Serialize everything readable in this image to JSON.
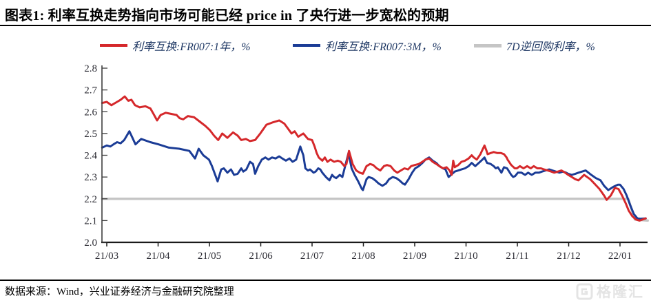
{
  "header": {
    "title": "图表1:  利率互换走势指向市场可能已经 price in 了央行进一步宽松的预期"
  },
  "footer": {
    "source": "数据来源：Wind，兴业证券经济与金融研究院整理",
    "watermark": "格隆汇"
  },
  "colors": {
    "swap_1y": "#d5282b",
    "swap_3m": "#1b3c96",
    "repo_7d": "#c5c5c5",
    "legend_text": "#1f3864",
    "axis_line": "#3d3d3d",
    "tick_text": "#2b2b33"
  },
  "chart_data": {
    "type": "line",
    "title": "",
    "xlabel": "",
    "ylabel": "",
    "grid": false,
    "legend_position": "top",
    "x_axis": {
      "unit": "months since 2021-03",
      "tick_labels": [
        "21/03",
        "21/04",
        "21/05",
        "21/06",
        "21/07",
        "21/08",
        "21/09",
        "21/10",
        "21/11",
        "21/12",
        "22/01"
      ]
    },
    "y_axis": {
      "min": 2.0,
      "max": 2.8,
      "tick_step": 0.1,
      "tick_labels": [
        "2.0",
        "2.1",
        "2.2",
        "2.3",
        "2.4",
        "2.5",
        "2.6",
        "2.7",
        "2.8"
      ]
    },
    "series": [
      {
        "name": "利率互换:FR007:1年，%",
        "color_key": "swap_1y",
        "points": [
          [
            -0.09,
            2.64
          ],
          [
            0,
            2.645
          ],
          [
            0.09,
            2.63
          ],
          [
            0.2,
            2.645
          ],
          [
            0.27,
            2.655
          ],
          [
            0.35,
            2.67
          ],
          [
            0.42,
            2.65
          ],
          [
            0.48,
            2.655
          ],
          [
            0.55,
            2.63
          ],
          [
            0.64,
            2.62
          ],
          [
            0.75,
            2.625
          ],
          [
            0.85,
            2.615
          ],
          [
            0.91,
            2.59
          ],
          [
            0.98,
            2.56
          ],
          [
            1.05,
            2.585
          ],
          [
            1.15,
            2.595
          ],
          [
            1.25,
            2.59
          ],
          [
            1.36,
            2.585
          ],
          [
            1.42,
            2.57
          ],
          [
            1.49,
            2.565
          ],
          [
            1.58,
            2.58
          ],
          [
            1.7,
            2.575
          ],
          [
            1.81,
            2.555
          ],
          [
            1.92,
            2.535
          ],
          [
            2.01,
            2.515
          ],
          [
            2.09,
            2.49
          ],
          [
            2.17,
            2.47
          ],
          [
            2.25,
            2.5
          ],
          [
            2.35,
            2.48
          ],
          [
            2.46,
            2.505
          ],
          [
            2.55,
            2.49
          ],
          [
            2.62,
            2.47
          ],
          [
            2.71,
            2.475
          ],
          [
            2.79,
            2.465
          ],
          [
            2.89,
            2.47
          ],
          [
            2.99,
            2.5
          ],
          [
            3.11,
            2.54
          ],
          [
            3.22,
            2.55
          ],
          [
            3.36,
            2.56
          ],
          [
            3.46,
            2.545
          ],
          [
            3.6,
            2.5
          ],
          [
            3.66,
            2.51
          ],
          [
            3.73,
            2.485
          ],
          [
            3.83,
            2.5
          ],
          [
            3.92,
            2.475
          ],
          [
            4,
            2.47
          ],
          [
            4.05,
            2.44
          ],
          [
            4.09,
            2.41
          ],
          [
            4.13,
            2.39
          ],
          [
            4.2,
            2.375
          ],
          [
            4.25,
            2.39
          ],
          [
            4.3,
            2.37
          ],
          [
            4.36,
            2.38
          ],
          [
            4.43,
            2.37
          ],
          [
            4.5,
            2.375
          ],
          [
            4.56,
            2.37
          ],
          [
            4.63,
            2.35
          ],
          [
            4.67,
            2.36
          ],
          [
            4.72,
            2.42
          ],
          [
            4.79,
            2.36
          ],
          [
            4.86,
            2.33
          ],
          [
            4.93,
            2.32
          ],
          [
            4.99,
            2.315
          ],
          [
            5.06,
            2.35
          ],
          [
            5.13,
            2.36
          ],
          [
            5.19,
            2.355
          ],
          [
            5.26,
            2.34
          ],
          [
            5.33,
            2.33
          ],
          [
            5.4,
            2.35
          ],
          [
            5.46,
            2.355
          ],
          [
            5.53,
            2.35
          ],
          [
            5.6,
            2.33
          ],
          [
            5.66,
            2.32
          ],
          [
            5.73,
            2.33
          ],
          [
            5.8,
            2.34
          ],
          [
            5.87,
            2.335
          ],
          [
            5.93,
            2.35
          ],
          [
            6,
            2.355
          ],
          [
            6.08,
            2.36
          ],
          [
            6.15,
            2.37
          ],
          [
            6.21,
            2.38
          ],
          [
            6.28,
            2.385
          ],
          [
            6.35,
            2.37
          ],
          [
            6.42,
            2.36
          ],
          [
            6.48,
            2.35
          ],
          [
            6.55,
            2.34
          ],
          [
            6.62,
            2.345
          ],
          [
            6.68,
            2.33
          ],
          [
            6.72,
            2.31
          ],
          [
            6.75,
            2.375
          ],
          [
            6.78,
            2.345
          ],
          [
            6.85,
            2.355
          ],
          [
            6.91,
            2.37
          ],
          [
            6.98,
            2.375
          ],
          [
            7.05,
            2.385
          ],
          [
            7.11,
            2.4
          ],
          [
            7.15,
            2.39
          ],
          [
            7.21,
            2.38
          ],
          [
            7.28,
            2.405
          ],
          [
            7.32,
            2.425
          ],
          [
            7.36,
            2.445
          ],
          [
            7.4,
            2.42
          ],
          [
            7.42,
            2.405
          ],
          [
            7.48,
            2.41
          ],
          [
            7.54,
            2.415
          ],
          [
            7.61,
            2.41
          ],
          [
            7.68,
            2.41
          ],
          [
            7.74,
            2.405
          ],
          [
            7.79,
            2.39
          ],
          [
            7.81,
            2.38
          ],
          [
            7.88,
            2.355
          ],
          [
            7.95,
            2.34
          ],
          [
            7.99,
            2.34
          ],
          [
            8.05,
            2.35
          ],
          [
            8.12,
            2.34
          ],
          [
            8.19,
            2.35
          ],
          [
            8.26,
            2.34
          ],
          [
            8.32,
            2.35
          ],
          [
            8.39,
            2.34
          ],
          [
            8.46,
            2.34
          ],
          [
            8.52,
            2.335
          ],
          [
            8.59,
            2.33
          ],
          [
            8.66,
            2.325
          ],
          [
            8.72,
            2.32
          ],
          [
            8.79,
            2.325
          ],
          [
            8.86,
            2.33
          ],
          [
            8.93,
            2.32
          ],
          [
            8.99,
            2.31
          ],
          [
            9.06,
            2.3
          ],
          [
            9.13,
            2.29
          ],
          [
            9.19,
            2.285
          ],
          [
            9.3,
            2.31
          ],
          [
            9.42,
            2.29
          ],
          [
            9.5,
            2.27
          ],
          [
            9.6,
            2.245
          ],
          [
            9.69,
            2.215
          ],
          [
            9.74,
            2.195
          ],
          [
            9.82,
            2.215
          ],
          [
            9.9,
            2.25
          ],
          [
            9.97,
            2.245
          ],
          [
            10.04,
            2.215
          ],
          [
            10.11,
            2.18
          ],
          [
            10.17,
            2.145
          ],
          [
            10.24,
            2.12
          ],
          [
            10.31,
            2.105
          ],
          [
            10.38,
            2.1
          ],
          [
            10.44,
            2.105
          ],
          [
            10.5,
            2.11
          ]
        ]
      },
      {
        "name": "利率互换:FR007:3M，%",
        "color_key": "swap_3m",
        "points": [
          [
            -0.09,
            2.435
          ],
          [
            0,
            2.445
          ],
          [
            0.07,
            2.44
          ],
          [
            0.13,
            2.45
          ],
          [
            0.2,
            2.46
          ],
          [
            0.27,
            2.455
          ],
          [
            0.34,
            2.47
          ],
          [
            0.44,
            2.51
          ],
          [
            0.5,
            2.48
          ],
          [
            0.56,
            2.45
          ],
          [
            0.67,
            2.475
          ],
          [
            0.85,
            2.46
          ],
          [
            1.01,
            2.45
          ],
          [
            1.21,
            2.435
          ],
          [
            1.41,
            2.43
          ],
          [
            1.61,
            2.42
          ],
          [
            1.72,
            2.385
          ],
          [
            1.79,
            2.43
          ],
          [
            1.88,
            2.4
          ],
          [
            1.99,
            2.38
          ],
          [
            2.05,
            2.35
          ],
          [
            2.16,
            2.28
          ],
          [
            2.23,
            2.335
          ],
          [
            2.28,
            2.34
          ],
          [
            2.35,
            2.32
          ],
          [
            2.42,
            2.335
          ],
          [
            2.48,
            2.31
          ],
          [
            2.55,
            2.315
          ],
          [
            2.62,
            2.34
          ],
          [
            2.66,
            2.325
          ],
          [
            2.72,
            2.335
          ],
          [
            2.79,
            2.37
          ],
          [
            2.85,
            2.36
          ],
          [
            2.89,
            2.315
          ],
          [
            2.95,
            2.35
          ],
          [
            3.02,
            2.38
          ],
          [
            3.09,
            2.39
          ],
          [
            3.15,
            2.38
          ],
          [
            3.22,
            2.39
          ],
          [
            3.29,
            2.385
          ],
          [
            3.36,
            2.395
          ],
          [
            3.42,
            2.385
          ],
          [
            3.49,
            2.375
          ],
          [
            3.56,
            2.385
          ],
          [
            3.62,
            2.37
          ],
          [
            3.69,
            2.38
          ],
          [
            3.77,
            2.44
          ],
          [
            3.8,
            2.42
          ],
          [
            3.83,
            2.4
          ],
          [
            3.87,
            2.34
          ],
          [
            3.92,
            2.33
          ],
          [
            3.96,
            2.335
          ],
          [
            4.03,
            2.32
          ],
          [
            4.07,
            2.325
          ],
          [
            4.12,
            2.34
          ],
          [
            4.16,
            2.335
          ],
          [
            4.2,
            2.32
          ],
          [
            4.27,
            2.3
          ],
          [
            4.34,
            2.285
          ],
          [
            4.39,
            2.31
          ],
          [
            4.43,
            2.3
          ],
          [
            4.47,
            2.295
          ],
          [
            4.54,
            2.31
          ],
          [
            4.59,
            2.3
          ],
          [
            4.71,
            2.41
          ],
          [
            4.77,
            2.34
          ],
          [
            4.83,
            2.31
          ],
          [
            4.9,
            2.28
          ],
          [
            4.97,
            2.245
          ],
          [
            4.99,
            2.24
          ],
          [
            5.06,
            2.29
          ],
          [
            5.1,
            2.3
          ],
          [
            5.17,
            2.295
          ],
          [
            5.23,
            2.285
          ],
          [
            5.3,
            2.27
          ],
          [
            5.37,
            2.26
          ],
          [
            5.44,
            2.27
          ],
          [
            5.5,
            2.29
          ],
          [
            5.57,
            2.3
          ],
          [
            5.64,
            2.295
          ],
          [
            5.7,
            2.285
          ],
          [
            5.77,
            2.27
          ],
          [
            5.81,
            2.265
          ],
          [
            5.88,
            2.29
          ],
          [
            5.95,
            2.32
          ],
          [
            6.01,
            2.34
          ],
          [
            6.08,
            2.35
          ],
          [
            6.15,
            2.365
          ],
          [
            6.21,
            2.38
          ],
          [
            6.28,
            2.39
          ],
          [
            6.35,
            2.375
          ],
          [
            6.42,
            2.365
          ],
          [
            6.48,
            2.35
          ],
          [
            6.55,
            2.34
          ],
          [
            6.6,
            2.335
          ],
          [
            6.66,
            2.3
          ],
          [
            6.78,
            2.325
          ],
          [
            6.85,
            2.33
          ],
          [
            6.91,
            2.335
          ],
          [
            6.98,
            2.34
          ],
          [
            7.05,
            2.35
          ],
          [
            7.11,
            2.365
          ],
          [
            7.18,
            2.35
          ],
          [
            7.25,
            2.365
          ],
          [
            7.32,
            2.38
          ],
          [
            7.36,
            2.39
          ],
          [
            7.41,
            2.365
          ],
          [
            7.48,
            2.36
          ],
          [
            7.54,
            2.35
          ],
          [
            7.58,
            2.34
          ],
          [
            7.62,
            2.345
          ],
          [
            7.69,
            2.32
          ],
          [
            7.74,
            2.345
          ],
          [
            7.8,
            2.34
          ],
          [
            7.88,
            2.31
          ],
          [
            7.92,
            2.3
          ],
          [
            7.96,
            2.305
          ],
          [
            8.01,
            2.32
          ],
          [
            8.08,
            2.32
          ],
          [
            8.15,
            2.31
          ],
          [
            8.21,
            2.32
          ],
          [
            8.28,
            2.31
          ],
          [
            8.35,
            2.32
          ],
          [
            8.42,
            2.32
          ],
          [
            8.48,
            2.325
          ],
          [
            8.55,
            2.33
          ],
          [
            8.62,
            2.335
          ],
          [
            8.68,
            2.33
          ],
          [
            8.75,
            2.325
          ],
          [
            8.82,
            2.32
          ],
          [
            8.89,
            2.325
          ],
          [
            8.95,
            2.32
          ],
          [
            8.99,
            2.315
          ],
          [
            9.06,
            2.31
          ],
          [
            9.13,
            2.315
          ],
          [
            9.19,
            2.32
          ],
          [
            9.33,
            2.33
          ],
          [
            9.44,
            2.31
          ],
          [
            9.53,
            2.295
          ],
          [
            9.62,
            2.285
          ],
          [
            9.69,
            2.26
          ],
          [
            9.77,
            2.24
          ],
          [
            9.87,
            2.255
          ],
          [
            9.96,
            2.265
          ],
          [
            10,
            2.265
          ],
          [
            10.07,
            2.245
          ],
          [
            10.13,
            2.215
          ],
          [
            10.2,
            2.17
          ],
          [
            10.27,
            2.13
          ],
          [
            10.34,
            2.11
          ],
          [
            10.4,
            2.108
          ],
          [
            10.5,
            2.11
          ]
        ]
      },
      {
        "name": "7D逆回购利率，%",
        "color_key": "repo_7d",
        "points": [
          [
            -0.09,
            2.2
          ],
          [
            10.16,
            2.2
          ],
          [
            10.29,
            2.105
          ],
          [
            10.54,
            2.1
          ]
        ]
      }
    ]
  }
}
